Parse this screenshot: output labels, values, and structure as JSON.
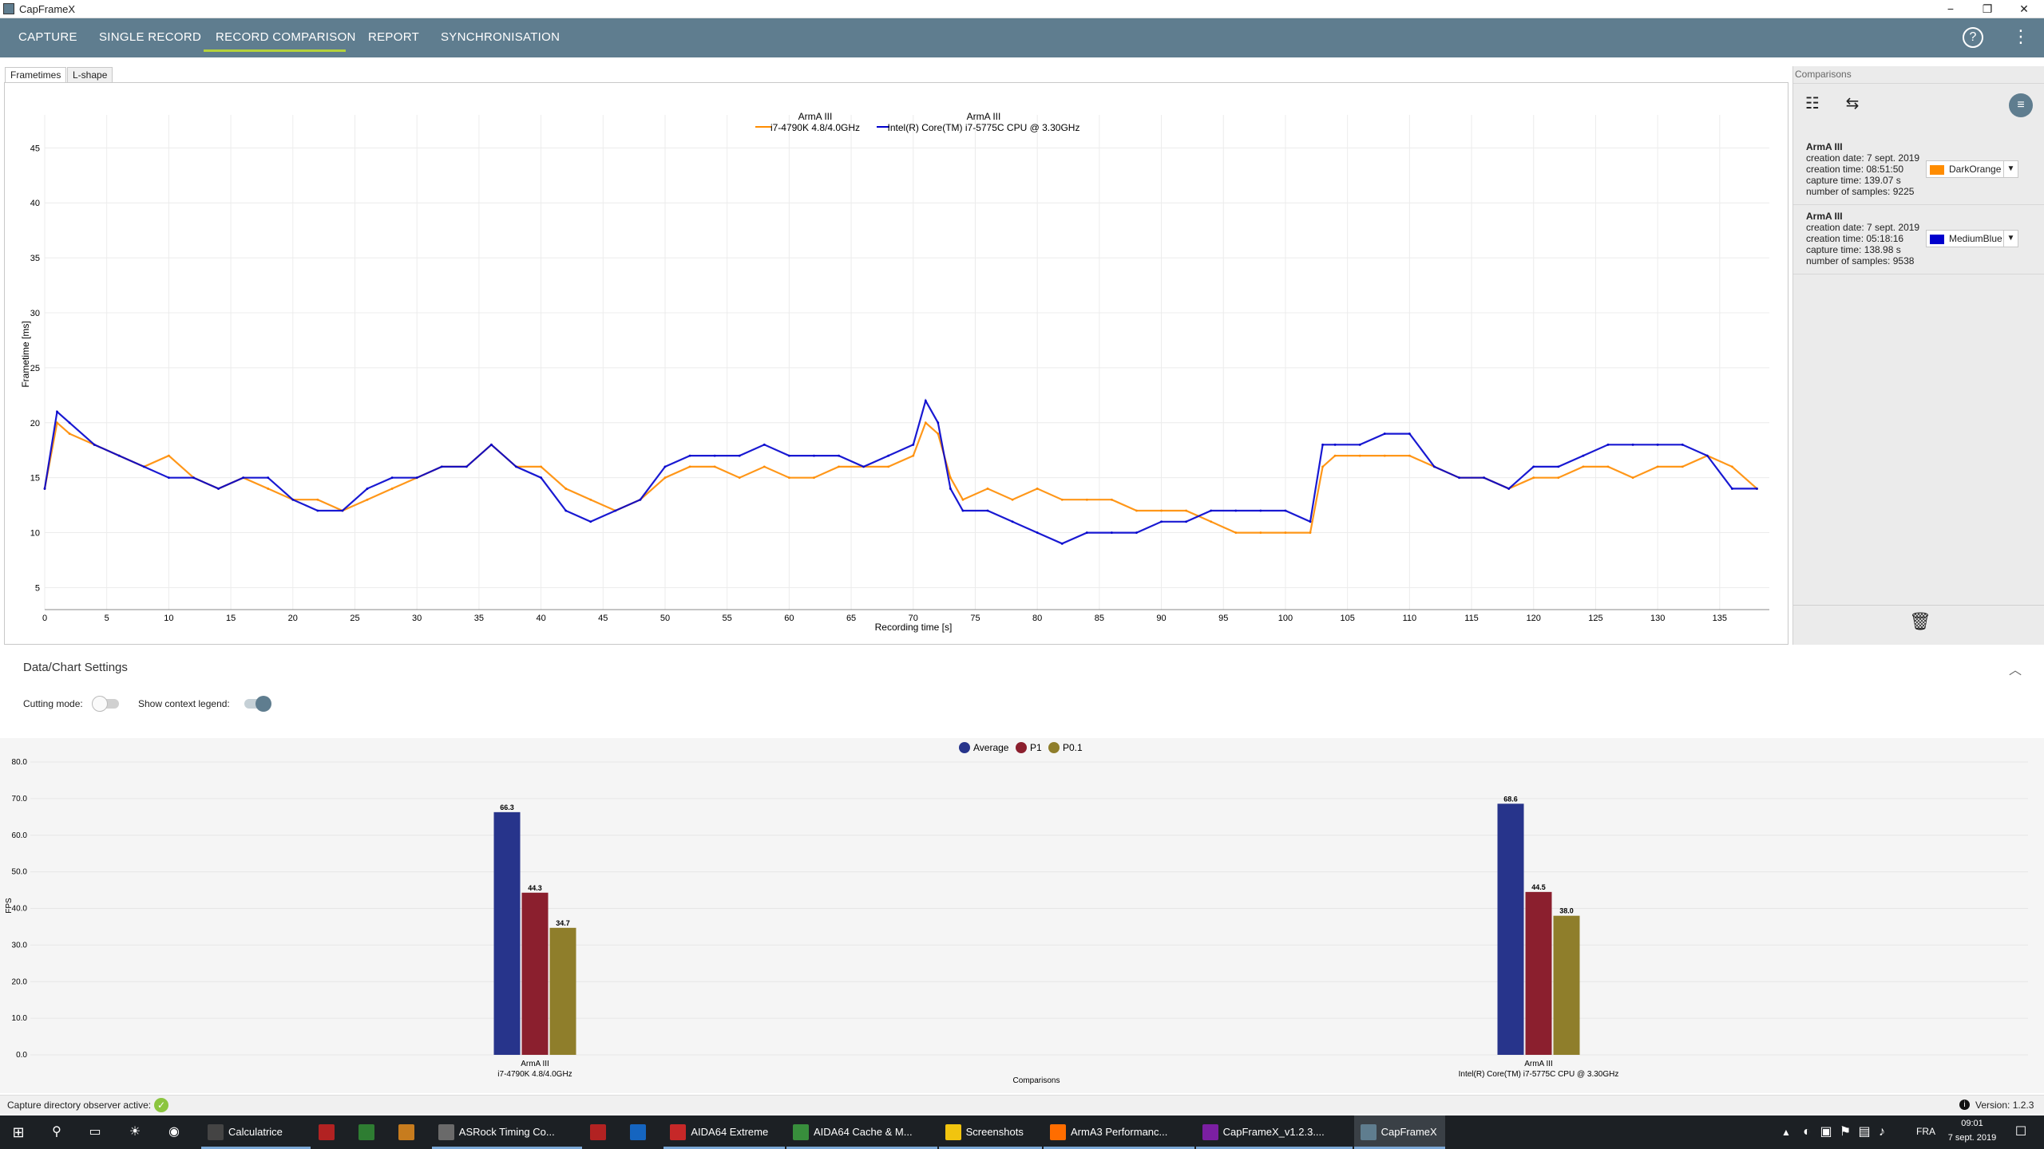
{
  "window": {
    "title": "CapFrameX",
    "controls": [
      "−",
      "❐",
      "✕"
    ]
  },
  "menu": {
    "items": [
      "CAPTURE",
      "SINGLE RECORD",
      "RECORD COMPARISON",
      "REPORT",
      "SYNCHRONISATION"
    ],
    "active": "RECORD COMPARISON"
  },
  "tabs": [
    "Frametimes",
    "L-shape"
  ],
  "frametime_chart": {
    "legend": [
      {
        "line1": "ArmA III",
        "line2": "i7-4790K 4.8/4.0GHz",
        "color": "#ff8c00"
      },
      {
        "line1": "ArmA III",
        "line2": "Intel(R) Core(TM) i7-5775C CPU @ 3.30GHz",
        "color": "#0000cd"
      }
    ],
    "ylabel": "Frametime [ms]",
    "xlabel": "Recording time [s]"
  },
  "chart_data": [
    {
      "type": "line",
      "title": "",
      "xlabel": "Recording time [s]",
      "ylabel": "Frametime [ms]",
      "xlim": [
        0,
        139
      ],
      "ylim": [
        3,
        48
      ],
      "xticks": [
        0,
        5,
        10,
        15,
        20,
        25,
        30,
        35,
        40,
        45,
        50,
        55,
        60,
        65,
        70,
        75,
        80,
        85,
        90,
        95,
        100,
        105,
        110,
        115,
        120,
        125,
        130,
        135
      ],
      "yticks": [
        5,
        10,
        15,
        20,
        25,
        30,
        35,
        40,
        45
      ],
      "grid": true,
      "legend_position": "top-center",
      "series": [
        {
          "name": "ArmA III i7-4790K 4.8/4.0GHz",
          "color": "#ff8c00",
          "x": [
            0,
            1,
            2,
            4,
            6,
            8,
            10,
            12,
            14,
            16,
            18,
            20,
            22,
            24,
            26,
            28,
            30,
            32,
            34,
            36,
            38,
            40,
            42,
            44,
            46,
            48,
            50,
            52,
            54,
            56,
            58,
            60,
            62,
            64,
            66,
            68,
            70,
            71,
            72,
            73,
            74,
            76,
            78,
            80,
            82,
            84,
            86,
            88,
            90,
            92,
            94,
            96,
            98,
            100,
            102,
            103,
            104,
            106,
            108,
            110,
            112,
            114,
            116,
            118,
            120,
            122,
            124,
            126,
            128,
            130,
            132,
            134,
            136,
            138
          ],
          "y": [
            14,
            20,
            19,
            18,
            17,
            16,
            17,
            15,
            14,
            15,
            14,
            13,
            13,
            12,
            13,
            14,
            15,
            16,
            16,
            18,
            16,
            16,
            14,
            13,
            12,
            13,
            15,
            16,
            16,
            15,
            16,
            15,
            15,
            16,
            16,
            16,
            17,
            20,
            19,
            15,
            13,
            14,
            13,
            14,
            13,
            13,
            13,
            12,
            12,
            12,
            11,
            10,
            10,
            10,
            10,
            16,
            17,
            17,
            17,
            17,
            16,
            15,
            15,
            14,
            15,
            15,
            16,
            16,
            15,
            16,
            16,
            17,
            16,
            14
          ]
        },
        {
          "name": "ArmA III Intel(R) Core(TM) i7-5775C CPU @ 3.30GHz",
          "color": "#0000cd",
          "x": [
            0,
            1,
            2,
            4,
            6,
            8,
            10,
            12,
            14,
            16,
            18,
            20,
            22,
            24,
            26,
            28,
            30,
            32,
            34,
            36,
            38,
            40,
            42,
            44,
            46,
            48,
            50,
            52,
            54,
            56,
            58,
            60,
            62,
            64,
            66,
            68,
            70,
            71,
            72,
            73,
            74,
            76,
            78,
            80,
            82,
            84,
            86,
            88,
            90,
            92,
            94,
            96,
            98,
            100,
            102,
            103,
            104,
            106,
            108,
            110,
            112,
            114,
            116,
            118,
            120,
            122,
            124,
            126,
            128,
            130,
            132,
            134,
            136,
            138
          ],
          "y": [
            14,
            21,
            20,
            18,
            17,
            16,
            15,
            15,
            14,
            15,
            15,
            13,
            12,
            12,
            14,
            15,
            15,
            16,
            16,
            18,
            16,
            15,
            12,
            11,
            12,
            13,
            16,
            17,
            17,
            17,
            18,
            17,
            17,
            17,
            16,
            17,
            18,
            22,
            20,
            14,
            12,
            12,
            11,
            10,
            9,
            10,
            10,
            10,
            11,
            11,
            12,
            12,
            12,
            12,
            11,
            18,
            18,
            18,
            19,
            19,
            16,
            15,
            15,
            14,
            16,
            16,
            17,
            18,
            18,
            18,
            18,
            17,
            14,
            14
          ]
        }
      ]
    },
    {
      "type": "bar",
      "title": "",
      "xlabel": "Comparisons",
      "ylabel": "FPS",
      "ylim": [
        0,
        80
      ],
      "yticks": [
        "0.0",
        "10.0",
        "20.0",
        "30.0",
        "40.0",
        "50.0",
        "60.0",
        "70.0",
        "80.0"
      ],
      "legend_position": "top-center",
      "categories": [
        "ArmA III\ni7-4790K 4.8/4.0GHz",
        "ArmA III\nIntel(R) Core(TM) i7-5775C CPU @ 3.30GHz"
      ],
      "series": [
        {
          "name": "Average",
          "color": "#27348b",
          "values": [
            66.3,
            68.6
          ]
        },
        {
          "name": "P1",
          "color": "#8b1f2e",
          "values": [
            44.3,
            44.5
          ]
        },
        {
          "name": "P0.1",
          "color": "#8f7e2b",
          "values": [
            34.7,
            38.0
          ]
        }
      ]
    }
  ],
  "comparisons": {
    "header": "Comparisons",
    "items": [
      {
        "name": "ArmA III",
        "creation_date": "creation date: 7 sept. 2019",
        "creation_time": "creation time: 08:51:50",
        "capture_time": "capture time: 139.07 s",
        "samples": "number of samples: 9225",
        "color_label": "DarkOrange",
        "color": "#ff8c00"
      },
      {
        "name": "ArmA III",
        "creation_date": "creation date: 7 sept. 2019",
        "creation_time": "creation time: 05:18:16",
        "capture_time": "capture time: 138.98 s",
        "samples": "number of samples: 9538",
        "color_label": "MediumBlue",
        "color": "#0000cd"
      }
    ]
  },
  "settings": {
    "title": "Data/Chart Settings",
    "cutting_mode_label": "Cutting mode:",
    "context_legend_label": "Show context legend:",
    "cutting_mode": false,
    "context_legend": true
  },
  "bar_chart": {
    "labels": [
      {
        "line1": "ArmA III",
        "line2": "i7-4790K 4.8/4.0GHz"
      },
      {
        "line1": "ArmA III",
        "line2": "Intel(R) Core(TM) i7-5775C CPU @ 3.30GHz"
      }
    ],
    "xlabel": "Comparisons",
    "ylabel": "FPS",
    "legend": [
      "Average",
      "P1",
      "P0.1"
    ]
  },
  "status": {
    "observer_text": "Capture directory observer active:",
    "version": "Version:  1.2.3"
  },
  "taskbar": {
    "apps": [
      {
        "label": "Calculatrice",
        "color": "#444"
      },
      {
        "label": "",
        "color": "#b22222"
      },
      {
        "label": "",
        "color": "#2e7d32"
      },
      {
        "label": "",
        "color": "#c77c1e"
      },
      {
        "label": "ASRock Timing Co...",
        "color": "#6a6a6a"
      },
      {
        "label": "",
        "color": "#b22222"
      },
      {
        "label": "",
        "color": "#1565c0"
      },
      {
        "label": "AIDA64 Extreme",
        "color": "#c62828"
      },
      {
        "label": "AIDA64 Cache & M...",
        "color": "#388e3c"
      },
      {
        "label": "Screenshots",
        "color": "#f1c40f"
      },
      {
        "label": "ArmA3 Performanc...",
        "color": "#ff6d00"
      },
      {
        "label": "CapFrameX_v1.2.3....",
        "color": "#7b1fa2"
      },
      {
        "label": "CapFrameX",
        "color": "#5f7d8f"
      }
    ],
    "clock_time": "09:01",
    "clock_date": "7 sept. 2019",
    "lang": "FRA"
  }
}
